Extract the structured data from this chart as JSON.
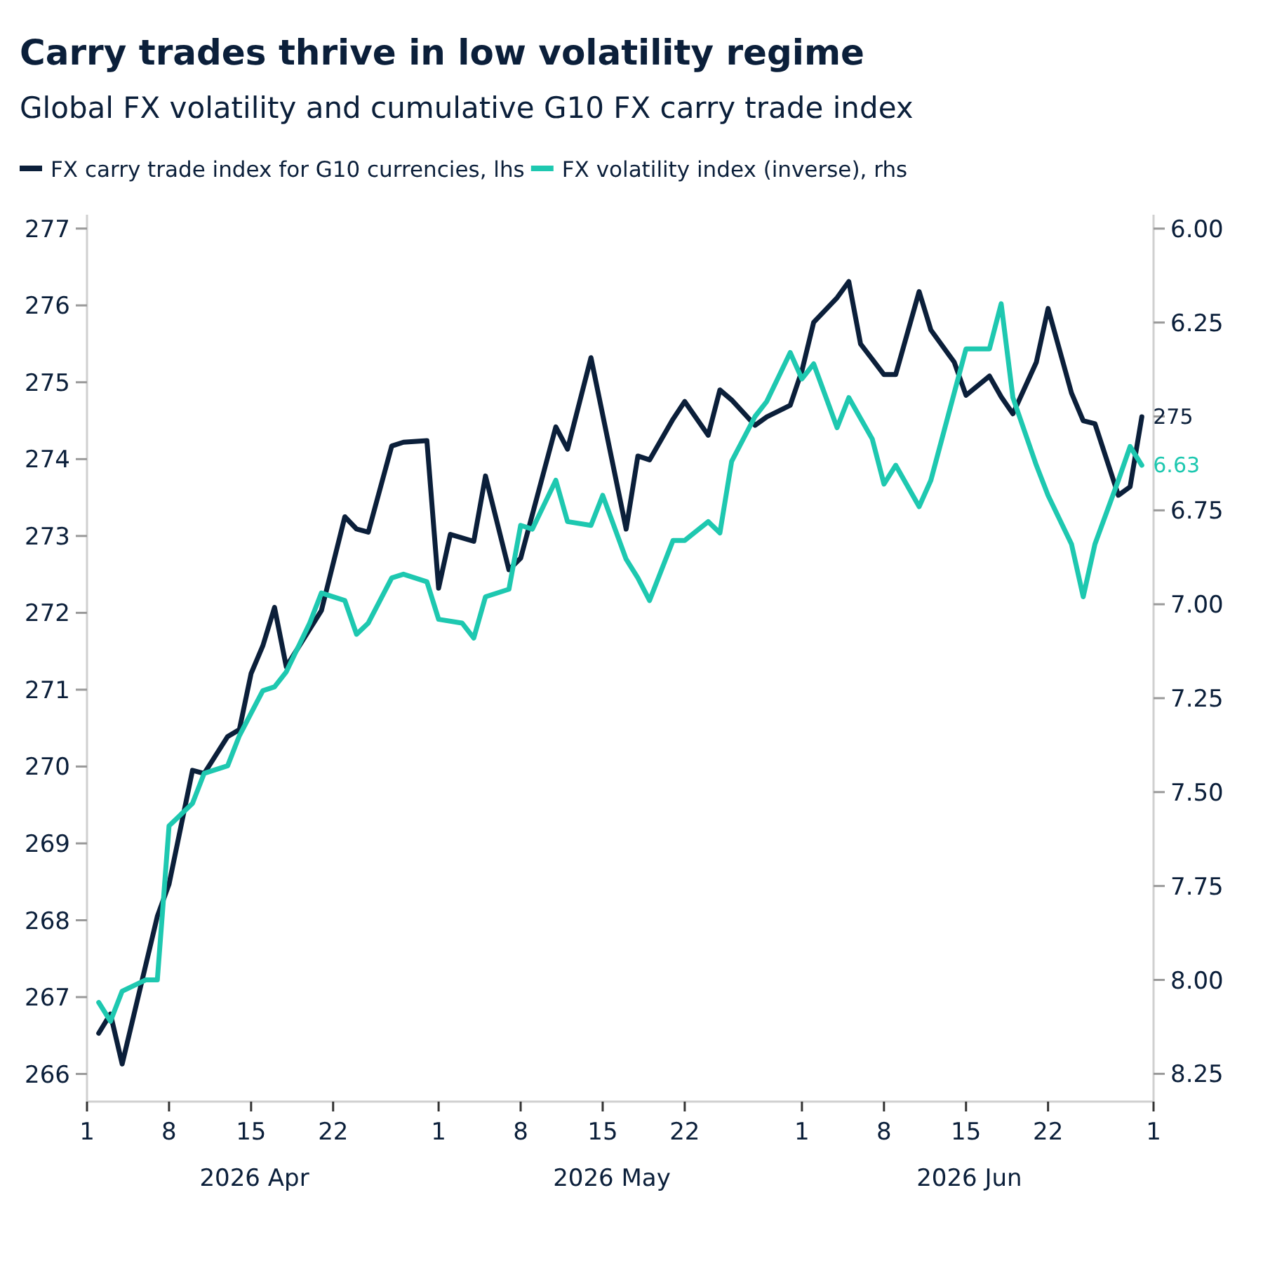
{
  "chart_data": {
    "type": "line",
    "title": "Carry trades thrive in low volatility regime",
    "subtitle": "Global FX volatility and cumulative G10 FX carry trade index",
    "legend": "top left",
    "grid": false,
    "xlim": [
      "2026-04-01",
      "2026-07-01"
    ],
    "xticks": [
      {
        "value": "2026-04-01",
        "label": "1"
      },
      {
        "value": "2026-04-08",
        "label": "8"
      },
      {
        "value": "2026-04-15",
        "label": "15"
      },
      {
        "value": "2026-04-22",
        "label": "22"
      },
      {
        "value": "2026-05-01",
        "label": "1"
      },
      {
        "value": "2026-05-08",
        "label": "8"
      },
      {
        "value": "2026-05-15",
        "label": "15"
      },
      {
        "value": "2026-05-22",
        "label": "22"
      },
      {
        "value": "2026-06-01",
        "label": "1"
      },
      {
        "value": "2026-06-08",
        "label": "8"
      },
      {
        "value": "2026-06-15",
        "label": "15"
      },
      {
        "value": "2026-06-22",
        "label": "22"
      },
      {
        "value": "2026-07-01",
        "label": "1"
      }
    ],
    "annotations": [
      "2026 Apr",
      "2026 May",
      "2026 Jun"
    ],
    "ylim": [
      265.64,
      277.18
    ],
    "yticks": [
      266,
      267,
      268,
      269,
      270,
      271,
      272,
      273,
      274,
      275,
      276,
      277
    ],
    "y2lim": [
      8.324,
      5.963
    ],
    "y2ticks": [
      {
        "value": 6,
        "label": "6.00"
      },
      {
        "value": 6.25,
        "label": "6.25"
      },
      {
        "value": 6.5,
        "label": null
      },
      {
        "value": 6.75,
        "label": "6.75"
      },
      {
        "value": 7,
        "label": "7.00"
      },
      {
        "value": 7.25,
        "label": "7.25"
      },
      {
        "value": 7.5,
        "label": "7.50"
      },
      {
        "value": 7.75,
        "label": "7.75"
      },
      {
        "value": 8,
        "label": "8.00"
      },
      {
        "value": 8.25,
        "label": "8.25"
      }
    ],
    "series": [
      {
        "name": "FX carry trade index for G10 currencies, lhs",
        "color": "#0b1f3a",
        "x": [
          "2026-04-02",
          "2026-04-03",
          "2026-04-04",
          "2026-04-07",
          "2026-04-08",
          "2026-04-10",
          "2026-04-11",
          "2026-04-13",
          "2026-04-14",
          "2026-04-15",
          "2026-04-16",
          "2026-04-17",
          "2026-04-18",
          "2026-04-21",
          "2026-04-23",
          "2026-04-24",
          "2026-04-25",
          "2026-04-27",
          "2026-04-28",
          "2026-04-30",
          "2026-05-01",
          "2026-05-02",
          "2026-05-04",
          "2026-05-05",
          "2026-05-07",
          "2026-05-08",
          "2026-05-11",
          "2026-05-12",
          "2026-05-14",
          "2026-05-17",
          "2026-05-18",
          "2026-05-19",
          "2026-05-21",
          "2026-05-22",
          "2026-05-24",
          "2026-05-25",
          "2026-05-26",
          "2026-05-28",
          "2026-05-29",
          "2026-05-31",
          "2026-06-01",
          "2026-06-02",
          "2026-06-04",
          "2026-06-05",
          "2026-06-06",
          "2026-06-08",
          "2026-06-09",
          "2026-06-11",
          "2026-06-12",
          "2026-06-14",
          "2026-06-15",
          "2026-06-17",
          "2026-06-18",
          "2026-06-19",
          "2026-06-21",
          "2026-06-22",
          "2026-06-24",
          "2026-06-25",
          "2026-06-26",
          "2026-06-28",
          "2026-06-29",
          "2026-06-30"
        ],
        "values": [
          266.53,
          266.78,
          266.13,
          268.05,
          268.47,
          269.95,
          269.91,
          270.39,
          270.48,
          271.21,
          271.57,
          272.07,
          271.3,
          272.03,
          273.25,
          273.09,
          273.05,
          274.17,
          274.22,
          274.24,
          272.32,
          273.02,
          272.93,
          273.78,
          272.56,
          272.71,
          274.42,
          274.13,
          275.32,
          273.09,
          274.04,
          273.99,
          274.52,
          274.75,
          274.31,
          274.9,
          274.77,
          274.44,
          274.55,
          274.7,
          275.15,
          275.78,
          276.1,
          276.31,
          275.5,
          275.1,
          275.1,
          276.18,
          275.68,
          275.26,
          274.83,
          275.08,
          274.81,
          274.59,
          275.26,
          275.96,
          274.86,
          274.5,
          274.46,
          273.53,
          273.64,
          274.55
        ],
        "value_labels": [
          null,
          null,
          null,
          null,
          null,
          null,
          null,
          null,
          null,
          null,
          null,
          null,
          null,
          null,
          null,
          null,
          null,
          null,
          null,
          null,
          null,
          null,
          null,
          null,
          null,
          null,
          null,
          null,
          null,
          null,
          null,
          null,
          null,
          null,
          null,
          null,
          null,
          null,
          null,
          null,
          null,
          null,
          null,
          null,
          null,
          null,
          null,
          null,
          null,
          null,
          null,
          null,
          null,
          null,
          null,
          null,
          null,
          null,
          null,
          null,
          null,
          "275"
        ]
      },
      {
        "name": "FX volatility index (inverse), rhs",
        "color": "#1ec8b0",
        "axis": "y2",
        "x": [
          "2026-04-02",
          "2026-04-03",
          "2026-04-04",
          "2026-04-06",
          "2026-04-07",
          "2026-04-08",
          "2026-04-10",
          "2026-04-11",
          "2026-04-13",
          "2026-04-14",
          "2026-04-16",
          "2026-04-17",
          "2026-04-18",
          "2026-04-20",
          "2026-04-21",
          "2026-04-23",
          "2026-04-24",
          "2026-04-25",
          "2026-04-27",
          "2026-04-28",
          "2026-04-30",
          "2026-05-01",
          "2026-05-03",
          "2026-05-04",
          "2026-05-05",
          "2026-05-07",
          "2026-05-08",
          "2026-05-09",
          "2026-05-11",
          "2026-05-12",
          "2026-05-14",
          "2026-05-15",
          "2026-05-17",
          "2026-05-18",
          "2026-05-19",
          "2026-05-21",
          "2026-05-22",
          "2026-05-24",
          "2026-05-25",
          "2026-05-26",
          "2026-05-28",
          "2026-05-29",
          "2026-05-31",
          "2026-06-01",
          "2026-06-02",
          "2026-06-04",
          "2026-06-05",
          "2026-06-07",
          "2026-06-08",
          "2026-06-09",
          "2026-06-11",
          "2026-06-12",
          "2026-06-15",
          "2026-06-17",
          "2026-06-18",
          "2026-06-19",
          "2026-06-21",
          "2026-06-22",
          "2026-06-24",
          "2026-06-25",
          "2026-06-26",
          "2026-06-28",
          "2026-06-29",
          "2026-06-30"
        ],
        "values": [
          8.06,
          8.11,
          8.03,
          8.0,
          8.0,
          7.59,
          7.53,
          7.45,
          7.43,
          7.35,
          7.23,
          7.22,
          7.18,
          7.05,
          6.97,
          6.99,
          7.08,
          7.05,
          6.93,
          6.92,
          6.94,
          7.04,
          7.05,
          7.09,
          6.98,
          6.96,
          6.79,
          6.8,
          6.67,
          6.78,
          6.79,
          6.71,
          6.88,
          6.93,
          6.99,
          6.83,
          6.83,
          6.78,
          6.81,
          6.62,
          6.5,
          6.46,
          6.33,
          6.4,
          6.36,
          6.53,
          6.45,
          6.56,
          6.68,
          6.63,
          6.74,
          6.67,
          6.32,
          6.32,
          6.2,
          6.45,
          6.63,
          6.71,
          6.84,
          6.98,
          6.84,
          6.67,
          6.58,
          6.63
        ],
        "value_labels": [
          null,
          null,
          null,
          null,
          null,
          null,
          null,
          null,
          null,
          null,
          null,
          null,
          null,
          null,
          null,
          null,
          null,
          null,
          null,
          null,
          null,
          null,
          null,
          null,
          null,
          null,
          null,
          null,
          null,
          null,
          null,
          null,
          null,
          null,
          null,
          null,
          null,
          null,
          null,
          null,
          null,
          null,
          null,
          null,
          null,
          null,
          null,
          null,
          null,
          null,
          null,
          null,
          null,
          null,
          null,
          null,
          null,
          null,
          null,
          null,
          null,
          null,
          null,
          "6.63"
        ]
      }
    ]
  }
}
